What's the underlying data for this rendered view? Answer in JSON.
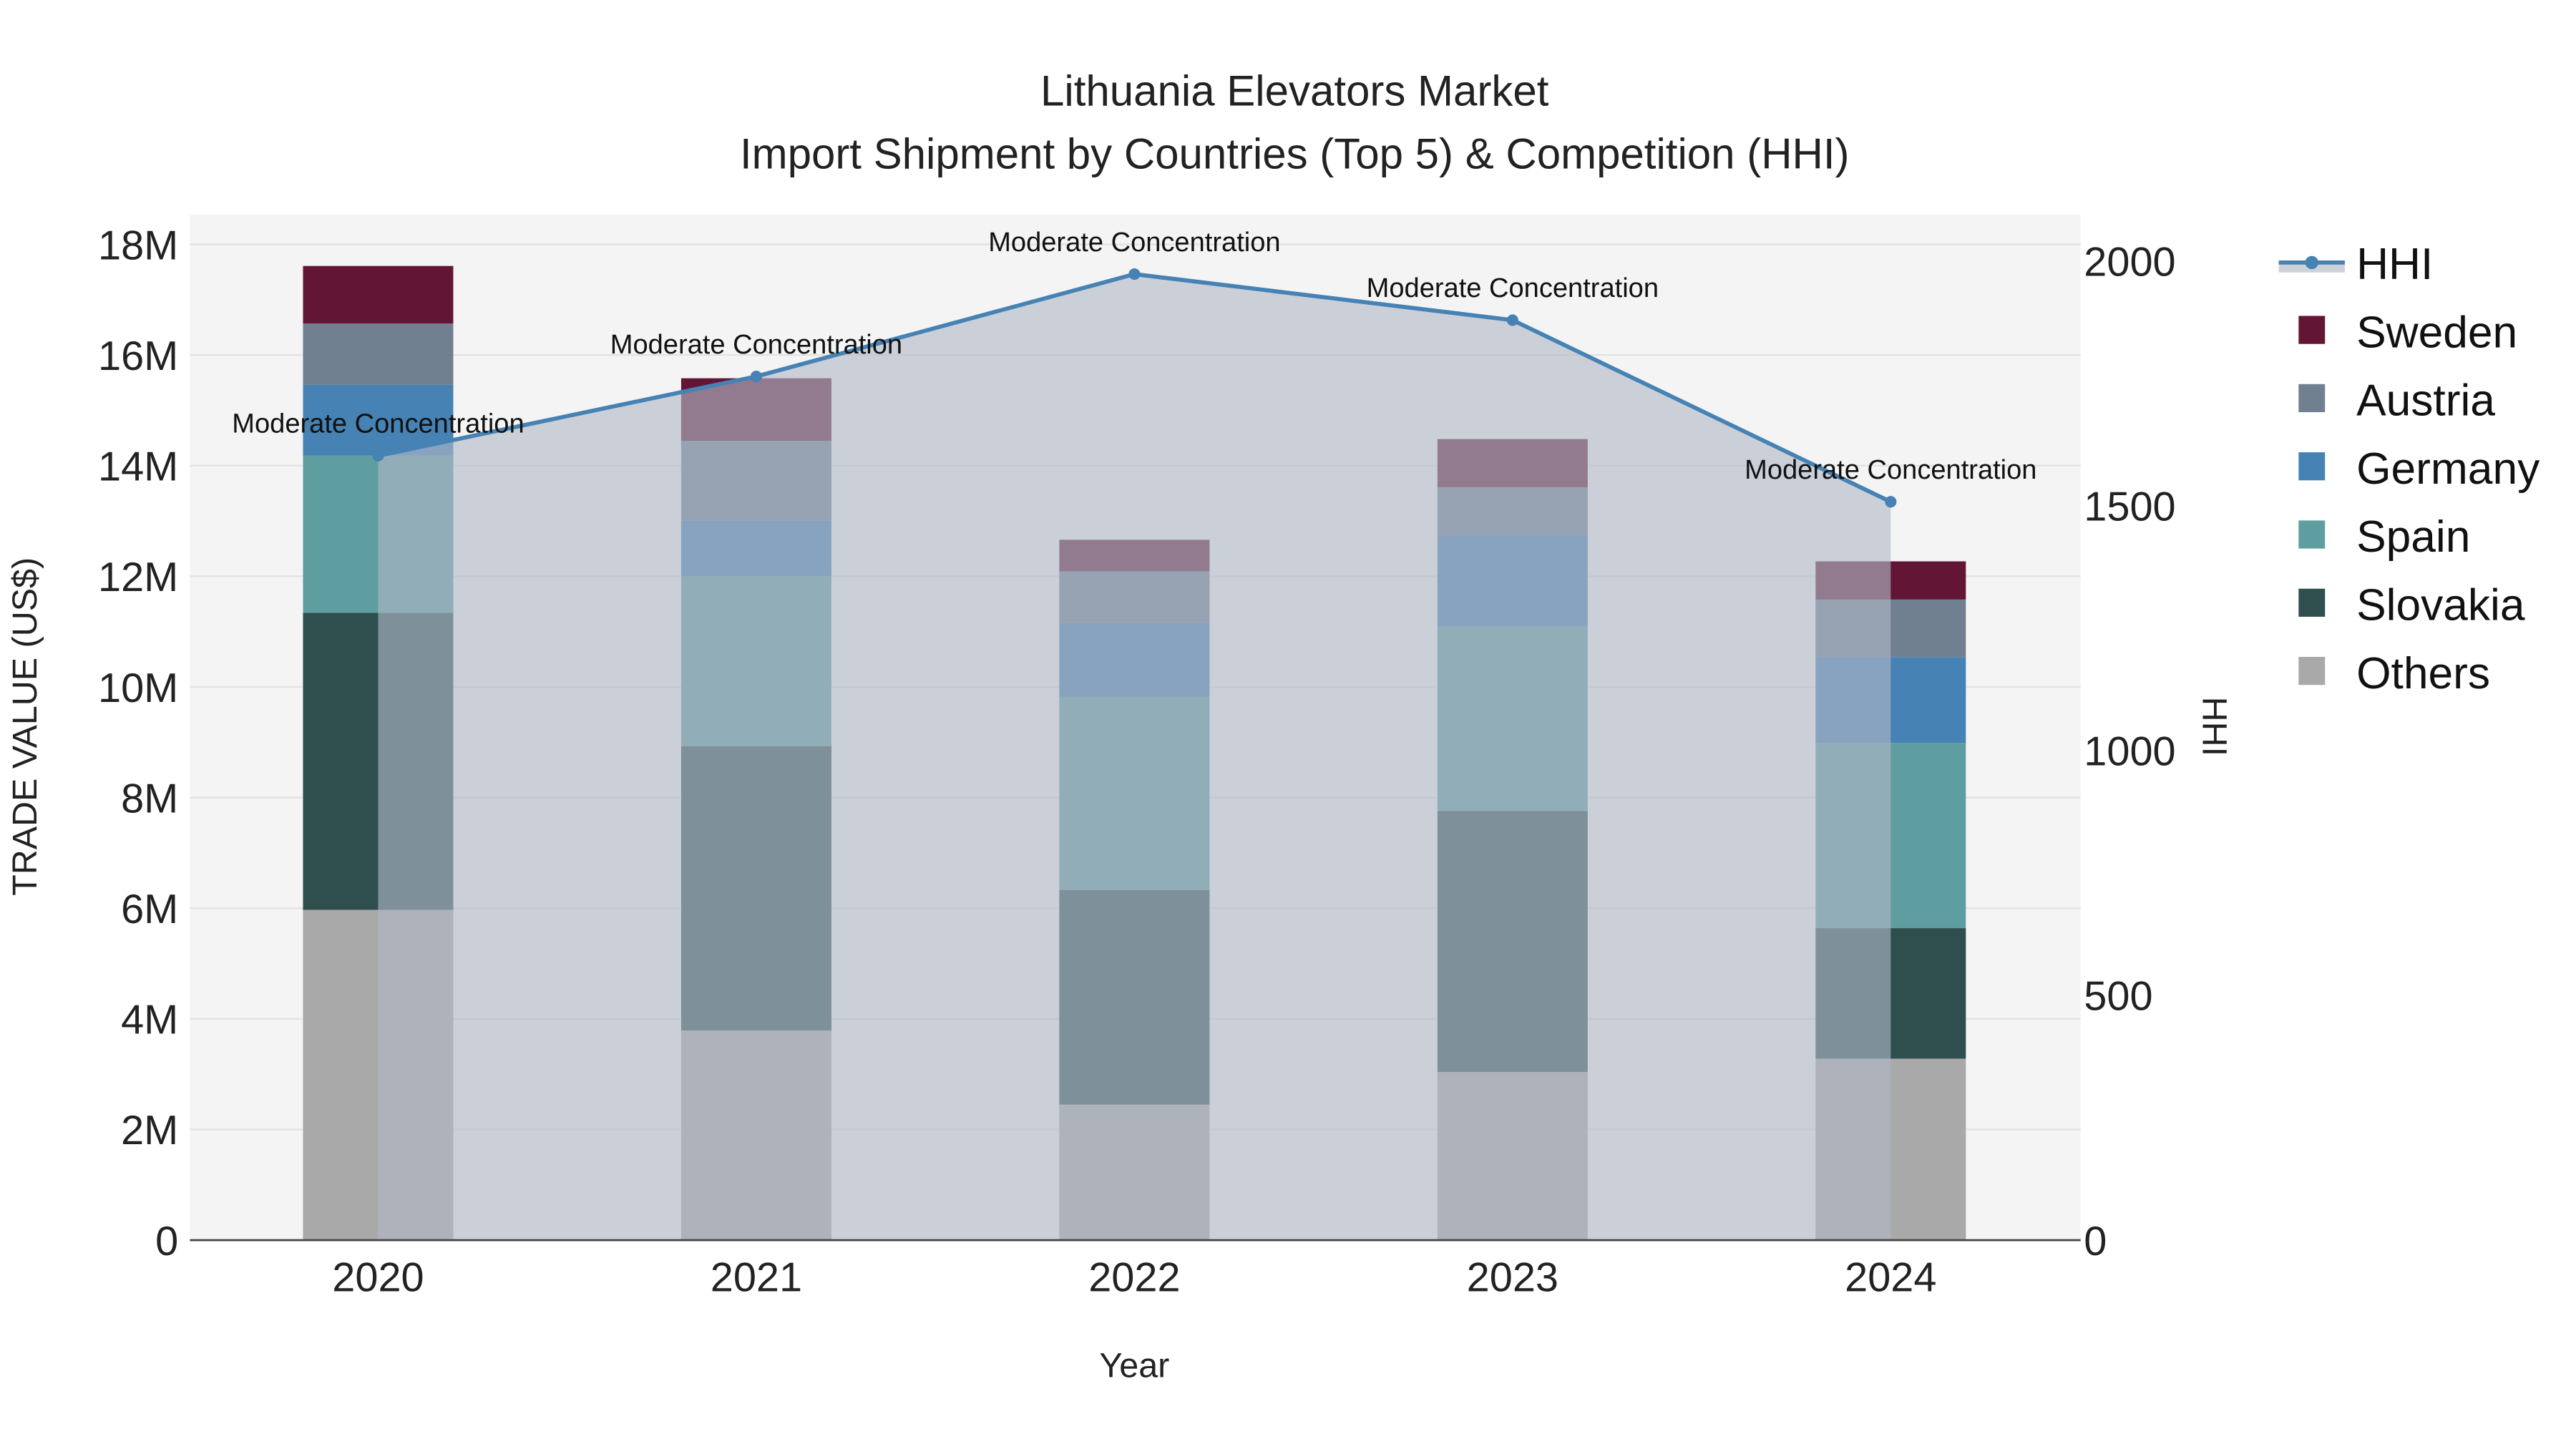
{
  "chart_data": {
    "type": "bar",
    "title": "Lithuania Elevators Market",
    "subtitle": "Import Shipment by Countries (Top 5) & Competition (HHI)",
    "xlabel": "Year",
    "ylabel": "TRADE VALUE (US$)",
    "y2label": "HHI",
    "categories": [
      "2020",
      "2021",
      "2022",
      "2023",
      "2024"
    ],
    "ylim": [
      0,
      18500000
    ],
    "y_ticks": [
      0,
      2000000,
      4000000,
      6000000,
      8000000,
      10000000,
      12000000,
      14000000,
      16000000,
      18000000
    ],
    "y_tick_labels": [
      "0",
      "2M",
      "4M",
      "6M",
      "8M",
      "10M",
      "12M",
      "14M",
      "16M",
      "18M"
    ],
    "y2lim": [
      0,
      2080
    ],
    "y2_ticks": [
      0,
      500,
      1000,
      1500,
      2000
    ],
    "y2_tick_labels": [
      "0",
      "500",
      "1000",
      "1500",
      "2000"
    ],
    "stacked": true,
    "series": [
      {
        "name": "Others",
        "color": "#a9a9a9",
        "values": [
          5970000,
          3790000,
          2450000,
          3040000,
          3280000
        ]
      },
      {
        "name": "Slovakia",
        "color": "#2f4f4f",
        "values": [
          5370000,
          5140000,
          3880000,
          4720000,
          2360000
        ]
      },
      {
        "name": "Spain",
        "color": "#5f9ea0",
        "values": [
          2840000,
          3070000,
          3490000,
          3340000,
          3350000
        ]
      },
      {
        "name": "Germany",
        "color": "#4682b4",
        "values": [
          1280000,
          1010000,
          1340000,
          1650000,
          1550000
        ]
      },
      {
        "name": "Austria",
        "color": "#708090",
        "values": [
          1110000,
          1440000,
          930000,
          860000,
          1040000
        ]
      },
      {
        "name": "Sweden",
        "color": "#631536",
        "values": [
          1040000,
          1130000,
          570000,
          870000,
          690000
        ]
      }
    ],
    "line": {
      "name": "HHI",
      "axis": "right",
      "color": "#4682b4",
      "values": [
        1602,
        1764,
        1973,
        1879,
        1508
      ],
      "annotations": [
        "Moderate Concentration",
        "Moderate Concentration",
        "Moderate Concentration",
        "Moderate Concentration",
        "Moderate Concentration"
      ]
    },
    "legend": {
      "position": "right",
      "entries": [
        "HHI",
        "Sweden",
        "Austria",
        "Germany",
        "Spain",
        "Slovakia",
        "Others"
      ]
    },
    "grid": true
  }
}
